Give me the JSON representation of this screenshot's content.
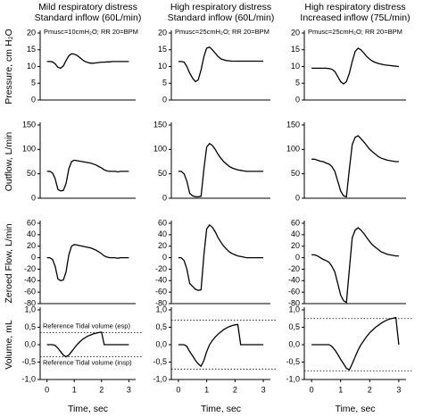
{
  "chart_data": [
    {
      "type": "line",
      "title": "Mild respiratory distress",
      "subtitle": "Standard inflow (60L/min)",
      "annotation": "Pmusc=10cmH₂O; RR 20=BPM",
      "ylabel": "Pressure, cm H₂O",
      "color": "#000000",
      "xlim": [
        -0.25,
        3.25
      ],
      "ylim": [
        0,
        20
      ],
      "yticks": [
        0,
        5,
        10,
        15,
        20
      ],
      "x": [
        0,
        0.1,
        0.2,
        0.3,
        0.4,
        0.5,
        0.6,
        0.7,
        0.8,
        0.9,
        1,
        1.1,
        1.2,
        1.3,
        1.4,
        1.5,
        1.6,
        1.7,
        1.8,
        1.9,
        2,
        2.1,
        2.2,
        2.3,
        2.4,
        2.5,
        2.6,
        2.7,
        2.8,
        2.9,
        3
      ],
      "values": [
        11.5,
        11.5,
        11.4,
        10.8,
        9.8,
        9.5,
        10.2,
        11.8,
        13.2,
        13.8,
        13.7,
        13.3,
        12.7,
        12,
        11.5,
        11.2,
        11,
        11,
        11.1,
        11.2,
        11.3,
        11.3,
        11.4,
        11.4,
        11.5,
        11.5,
        11.5,
        11.5,
        11.5,
        11.5,
        11.5
      ]
    },
    {
      "type": "line",
      "title": "High respiratory distress",
      "subtitle": "Standard inflow (60L/min)",
      "annotation": "Pmusc=25cmH₂O; RR 20=BPM",
      "color": "#000000",
      "xlim": [
        -0.25,
        3.25
      ],
      "ylim": [
        0,
        20
      ],
      "yticks": [
        0,
        5,
        10,
        15,
        20
      ],
      "x": [
        0,
        0.1,
        0.2,
        0.3,
        0.4,
        0.5,
        0.6,
        0.7,
        0.8,
        0.9,
        1,
        1.1,
        1.2,
        1.3,
        1.4,
        1.5,
        1.6,
        1.7,
        1.8,
        1.9,
        2,
        2.1,
        2.2,
        2.3,
        2.4,
        2.5,
        2.6,
        2.7,
        2.8,
        2.9,
        3
      ],
      "values": [
        11.5,
        11.5,
        11.3,
        10,
        8,
        6.5,
        5.5,
        6,
        9,
        13,
        15.5,
        15.8,
        15,
        14,
        13,
        12.3,
        12,
        11.8,
        11.7,
        11.6,
        11.6,
        11.6,
        11.6,
        11.6,
        11.6,
        11.6,
        11.6,
        11.6,
        11.6,
        11.6,
        11.6
      ]
    },
    {
      "type": "line",
      "title": "High respiratory distress",
      "subtitle": "Increased inflow  (75L/min)",
      "annotation": "Pmusc=25cmH₂O; RR 20=BPM",
      "color": "#000000",
      "xlim": [
        -0.25,
        3.25
      ],
      "ylim": [
        0,
        20
      ],
      "yticks": [
        0,
        5,
        10,
        15,
        20
      ],
      "x": [
        0,
        0.1,
        0.2,
        0.3,
        0.4,
        0.5,
        0.6,
        0.7,
        0.8,
        0.9,
        1,
        1.1,
        1.2,
        1.3,
        1.4,
        1.5,
        1.6,
        1.7,
        1.8,
        1.9,
        2,
        2.1,
        2.2,
        2.3,
        2.4,
        2.5,
        2.6,
        2.7,
        2.8,
        2.9,
        3
      ],
      "values": [
        9.5,
        9.5,
        9.5,
        9.5,
        9.5,
        9.5,
        9.4,
        9.2,
        8.5,
        7,
        5.5,
        4.8,
        5.5,
        8,
        11.5,
        14.5,
        15.5,
        15,
        14,
        13,
        12.2,
        11.6,
        11.2,
        10.9,
        10.7,
        10.5,
        10.4,
        10.3,
        10.2,
        10.1,
        10
      ]
    },
    {
      "type": "line",
      "ylabel": "Outflow, L/min",
      "color": "#000000",
      "xlim": [
        -0.25,
        3.25
      ],
      "ylim": [
        0,
        150
      ],
      "yticks": [
        0,
        50,
        100,
        150
      ],
      "x": [
        0,
        0.1,
        0.2,
        0.3,
        0.4,
        0.5,
        0.6,
        0.7,
        0.8,
        0.9,
        1,
        1.1,
        1.2,
        1.3,
        1.4,
        1.5,
        1.6,
        1.7,
        1.8,
        1.9,
        2,
        2.1,
        2.2,
        2.3,
        2.4,
        2.5,
        2.6,
        2.7,
        2.8,
        2.9,
        3
      ],
      "values": [
        55,
        55,
        52,
        40,
        18,
        15,
        16,
        30,
        60,
        75,
        78,
        77,
        76,
        75,
        74,
        73,
        72,
        70,
        68,
        65,
        62,
        58,
        56,
        55,
        55,
        55,
        54,
        55,
        55,
        55,
        55
      ]
    },
    {
      "type": "line",
      "color": "#000000",
      "xlim": [
        -0.25,
        3.25
      ],
      "ylim": [
        0,
        150
      ],
      "yticks": [
        0,
        50,
        100,
        150
      ],
      "x": [
        0,
        0.1,
        0.2,
        0.3,
        0.4,
        0.5,
        0.6,
        0.7,
        0.8,
        0.9,
        1,
        1.1,
        1.2,
        1.3,
        1.4,
        1.5,
        1.6,
        1.7,
        1.8,
        1.9,
        2,
        2.1,
        2.2,
        2.3,
        2.4,
        2.5,
        2.6,
        2.7,
        2.8,
        2.9,
        3
      ],
      "values": [
        55,
        55,
        50,
        35,
        10,
        5,
        3,
        3,
        4,
        60,
        105,
        112,
        108,
        100,
        90,
        82,
        75,
        70,
        65,
        62,
        60,
        58,
        57,
        56,
        55,
        55,
        55,
        55,
        55,
        55,
        55
      ]
    },
    {
      "type": "line",
      "color": "#000000",
      "xlim": [
        -0.25,
        3.25
      ],
      "ylim": [
        0,
        150
      ],
      "yticks": [
        0,
        50,
        100,
        150
      ],
      "x": [
        0,
        0.1,
        0.2,
        0.3,
        0.4,
        0.5,
        0.6,
        0.7,
        0.8,
        0.9,
        1,
        1.1,
        1.2,
        1.3,
        1.4,
        1.5,
        1.6,
        1.7,
        1.8,
        1.9,
        2,
        2.1,
        2.2,
        2.3,
        2.4,
        2.5,
        2.6,
        2.7,
        2.8,
        2.9,
        3
      ],
      "values": [
        80,
        80,
        78,
        76,
        75,
        72,
        70,
        65,
        55,
        35,
        15,
        5,
        3,
        60,
        110,
        125,
        128,
        122,
        115,
        108,
        100,
        95,
        90,
        85,
        82,
        80,
        78,
        77,
        76,
        75,
        75
      ]
    },
    {
      "type": "line",
      "ylabel": "Zeroed Flow, L/min",
      "color": "#000000",
      "xlim": [
        -0.25,
        3.25
      ],
      "ylim": [
        -80,
        60
      ],
      "yticks": [
        -80,
        -60,
        -40,
        -20,
        0,
        20,
        40,
        60
      ],
      "x": [
        0,
        0.1,
        0.2,
        0.3,
        0.4,
        0.5,
        0.6,
        0.7,
        0.8,
        0.9,
        1,
        1.1,
        1.2,
        1.3,
        1.4,
        1.5,
        1.6,
        1.7,
        1.8,
        1.9,
        2,
        2.1,
        2.2,
        2.3,
        2.4,
        2.5,
        2.6,
        2.7,
        2.8,
        2.9,
        3
      ],
      "values": [
        0,
        0,
        -3,
        -15,
        -37,
        -40,
        -39,
        -25,
        5,
        20,
        23,
        22,
        21,
        20,
        19,
        18,
        17,
        15,
        13,
        10,
        7,
        3,
        1,
        0,
        0,
        0,
        -1,
        0,
        0,
        0,
        0
      ]
    },
    {
      "type": "line",
      "color": "#000000",
      "xlim": [
        -0.25,
        3.25
      ],
      "ylim": [
        -80,
        60
      ],
      "yticks": [
        -80,
        -60,
        -40,
        -20,
        0,
        20,
        40,
        60
      ],
      "x": [
        0,
        0.1,
        0.2,
        0.3,
        0.4,
        0.5,
        0.6,
        0.7,
        0.8,
        0.9,
        1,
        1.1,
        1.2,
        1.3,
        1.4,
        1.5,
        1.6,
        1.7,
        1.8,
        1.9,
        2,
        2.1,
        2.2,
        2.3,
        2.4,
        2.5,
        2.6,
        2.7,
        2.8,
        2.9,
        3
      ],
      "values": [
        0,
        0,
        -5,
        -20,
        -45,
        -50,
        -55,
        -57,
        -56,
        5,
        50,
        57,
        53,
        45,
        35,
        27,
        20,
        15,
        10,
        7,
        5,
        3,
        2,
        1,
        0,
        0,
        0,
        0,
        0,
        0,
        0
      ]
    },
    {
      "type": "line",
      "color": "#000000",
      "xlim": [
        -0.25,
        3.25
      ],
      "ylim": [
        -80,
        60
      ],
      "yticks": [
        -80,
        -60,
        -40,
        -20,
        0,
        20,
        40,
        60
      ],
      "x": [
        0,
        0.1,
        0.2,
        0.3,
        0.4,
        0.5,
        0.6,
        0.7,
        0.8,
        0.9,
        1,
        1.1,
        1.2,
        1.3,
        1.4,
        1.5,
        1.6,
        1.7,
        1.8,
        1.9,
        2,
        2.1,
        2.2,
        2.3,
        2.4,
        2.5,
        2.6,
        2.7,
        2.8,
        2.9,
        3
      ],
      "values": [
        5,
        5,
        3,
        0,
        -3,
        -5,
        -8,
        -15,
        -25,
        -45,
        -65,
        -75,
        -78,
        -20,
        35,
        48,
        52,
        48,
        42,
        35,
        28,
        22,
        18,
        14,
        10,
        8,
        6,
        5,
        4,
        3,
        3
      ]
    },
    {
      "type": "line",
      "ylabel": "Volume, mL",
      "xlabel": "Time, sec",
      "color": "#000000",
      "xlim": [
        -0.25,
        3.25
      ],
      "xticks": [
        0,
        1,
        2,
        3
      ],
      "ylim": [
        -1,
        1
      ],
      "yticks": [
        {
          "value": -1,
          "label": "-1,0"
        },
        {
          "value": -0.5,
          "label": "-0,5"
        },
        {
          "value": 0,
          "label": "0,0"
        },
        {
          "value": 0.5,
          "label": "0,5"
        },
        {
          "value": 1,
          "label": "1,0"
        }
      ],
      "reference_lines": [
        {
          "value": 0.35,
          "label": "Reference Tidal volume (esp)"
        },
        {
          "value": -0.35,
          "label": "Reference Tidal volume (insp)"
        }
      ],
      "x": [
        0,
        0.1,
        0.2,
        0.3,
        0.4,
        0.5,
        0.6,
        0.7,
        0.8,
        0.9,
        1,
        1.1,
        1.2,
        1.3,
        1.4,
        1.5,
        1.6,
        1.7,
        1.8,
        1.9,
        2,
        2.1,
        2.2,
        2.3,
        2.4,
        2.5,
        2.6,
        2.7,
        2.8,
        2.9,
        3
      ],
      "values": [
        0,
        0,
        0,
        -0.02,
        -0.1,
        -0.2,
        -0.3,
        -0.35,
        -0.3,
        -0.2,
        -0.1,
        0,
        0.08,
        0.15,
        0.2,
        0.25,
        0.28,
        0.31,
        0.33,
        0.35,
        0.36,
        0,
        0,
        0,
        0,
        0,
        0,
        0,
        0,
        0,
        0
      ]
    },
    {
      "type": "line",
      "xlabel": "Time, sec",
      "color": "#000000",
      "xlim": [
        -0.25,
        3.25
      ],
      "xticks": [
        0,
        1,
        2,
        3
      ],
      "ylim": [
        -1,
        1
      ],
      "yticks": [
        {
          "value": -1,
          "label": "-1,0"
        },
        {
          "value": -0.5,
          "label": "-0,5"
        },
        {
          "value": 0,
          "label": "0,0"
        },
        {
          "value": 0.5,
          "label": "0,5"
        },
        {
          "value": 1,
          "label": "1,0"
        }
      ],
      "reference_lines": [
        {
          "value": 0.7
        },
        {
          "value": -0.7
        }
      ],
      "x": [
        0,
        0.1,
        0.2,
        0.3,
        0.4,
        0.5,
        0.6,
        0.7,
        0.8,
        0.9,
        1,
        1.1,
        1.2,
        1.3,
        1.4,
        1.5,
        1.6,
        1.7,
        1.8,
        1.9,
        2,
        2.1,
        2.2,
        2.3,
        2.4,
        2.5,
        2.6,
        2.7,
        2.8,
        2.9,
        3
      ],
      "values": [
        0,
        0,
        0,
        -0.05,
        -0.2,
        -0.32,
        -0.45,
        -0.55,
        -0.62,
        -0.45,
        -0.2,
        0,
        0.12,
        0.22,
        0.3,
        0.37,
        0.43,
        0.48,
        0.52,
        0.55,
        0.57,
        0.58,
        0,
        0,
        0,
        0,
        0,
        0,
        0,
        0,
        0
      ]
    },
    {
      "type": "line",
      "xlabel": "Time, sec",
      "color": "#000000",
      "xlim": [
        -0.25,
        3.25
      ],
      "xticks": [
        0,
        1,
        2,
        3
      ],
      "ylim": [
        -1,
        1
      ],
      "yticks": [
        {
          "value": -1,
          "label": "-1,0"
        },
        {
          "value": -0.5,
          "label": "-0,5"
        },
        {
          "value": 0,
          "label": "0,0"
        },
        {
          "value": 0.5,
          "label": "0,5"
        },
        {
          "value": 1,
          "label": "1,0"
        }
      ],
      "reference_lines": [
        {
          "value": 0.75
        },
        {
          "value": -0.75
        }
      ],
      "x": [
        0,
        0.1,
        0.2,
        0.3,
        0.4,
        0.5,
        0.6,
        0.7,
        0.8,
        0.9,
        1,
        1.1,
        1.2,
        1.3,
        1.4,
        1.5,
        1.6,
        1.7,
        1.8,
        1.9,
        2,
        2.1,
        2.2,
        2.3,
        2.4,
        2.5,
        2.6,
        2.7,
        2.8,
        2.9,
        3
      ],
      "values": [
        0,
        0,
        0,
        0,
        0,
        0,
        0,
        -0.05,
        -0.15,
        -0.28,
        -0.42,
        -0.55,
        -0.68,
        -0.72,
        -0.55,
        -0.35,
        -0.15,
        0,
        0.12,
        0.24,
        0.34,
        0.42,
        0.5,
        0.56,
        0.62,
        0.67,
        0.71,
        0.74,
        0.76,
        0.78,
        0
      ]
    }
  ]
}
